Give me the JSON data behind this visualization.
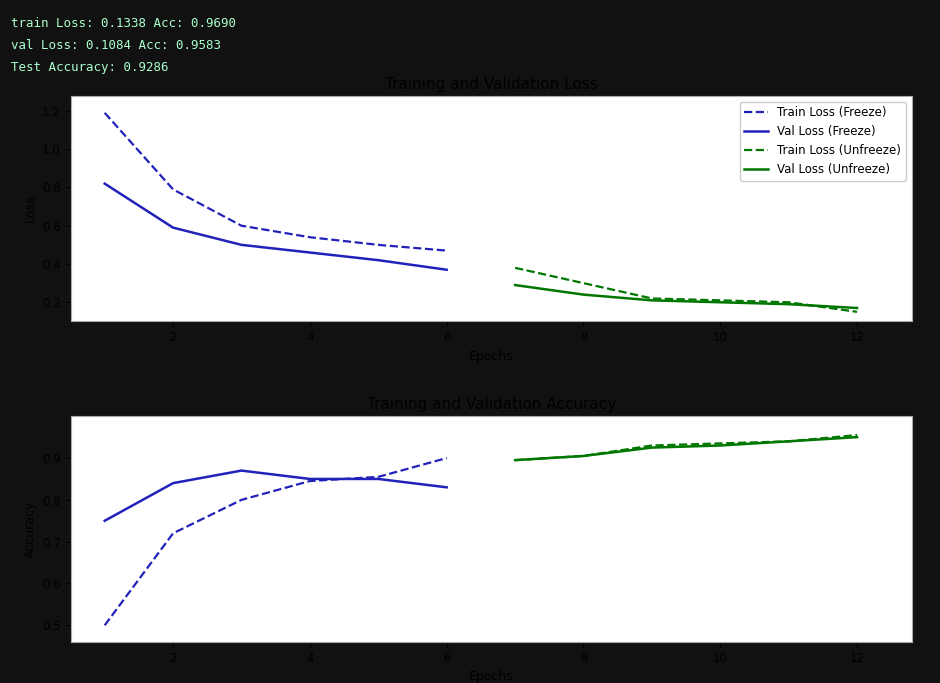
{
  "header_line1": "train Loss: 0.1338 Acc: 0.9690",
  "header_line2": "val Loss: 0.1084 Acc: 0.9583",
  "header_line3": "Test Accuracy: 0.9286",
  "loss_title": "Training and Validation Loss",
  "acc_title": "Training and Validation Accuracy",
  "xlabel": "Epochs",
  "ylabel_loss": "Loss",
  "ylabel_acc": "Accuracy",
  "freeze_epochs": [
    1,
    2,
    3,
    4,
    5,
    6
  ],
  "unfreeze_epochs": [
    7,
    8,
    9,
    10,
    11,
    12
  ],
  "train_loss_freeze": [
    1.19,
    0.79,
    0.6,
    0.54,
    0.5,
    0.47
  ],
  "val_loss_freeze": [
    0.82,
    0.59,
    0.5,
    0.46,
    0.42,
    0.37
  ],
  "train_loss_unfreeze": [
    0.38,
    0.3,
    0.22,
    0.21,
    0.2,
    0.15
  ],
  "val_loss_unfreeze": [
    0.29,
    0.24,
    0.21,
    0.2,
    0.19,
    0.17
  ],
  "train_acc_freeze": [
    0.5,
    0.72,
    0.8,
    0.845,
    0.855,
    0.9
  ],
  "val_acc_freeze": [
    0.75,
    0.84,
    0.87,
    0.85,
    0.85,
    0.83
  ],
  "train_acc_unfreeze": [
    0.895,
    0.905,
    0.93,
    0.935,
    0.94,
    0.955
  ],
  "val_acc_unfreeze": [
    0.895,
    0.905,
    0.925,
    0.93,
    0.94,
    0.95
  ],
  "blue_color": "#2222bb",
  "green_color": "#007700",
  "background_color": "#111111",
  "plot_bg_color": "#ffffff",
  "header_text_color": "#aaffcc",
  "legend_labels": [
    "Train Loss (Freeze)",
    "Val Loss (Freeze)",
    "Train Loss (Unfreeze)",
    "Val Loss (Unfreeze)"
  ],
  "loss_ylim": [
    0.1,
    1.28
  ],
  "loss_yticks": [
    0.2,
    0.4,
    0.6,
    0.8,
    1.0,
    1.2
  ],
  "acc_ylim": [
    0.46,
    1.0
  ],
  "acc_yticks": [
    0.5,
    0.6,
    0.7,
    0.8,
    0.9
  ],
  "xticks": [
    2,
    4,
    6,
    8,
    10,
    12
  ],
  "xlim": [
    0.5,
    12.8
  ]
}
